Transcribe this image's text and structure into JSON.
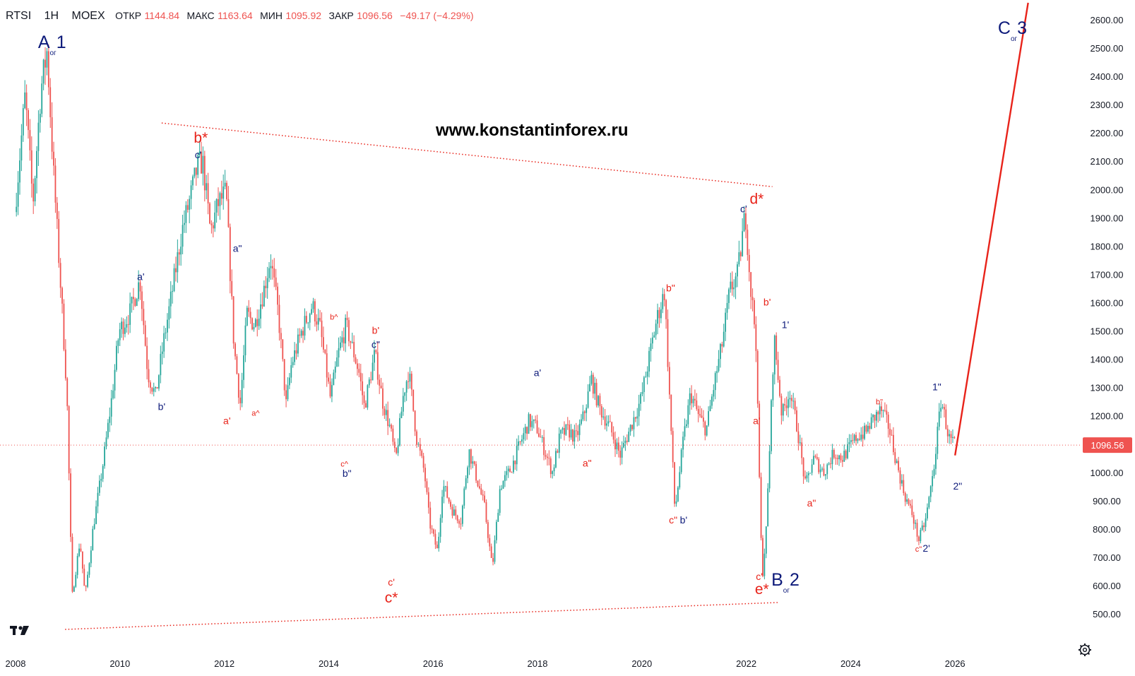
{
  "header": {
    "symbol": "RTSI",
    "interval": "1H",
    "exchange": "MOEX",
    "open_label": "ОТКР",
    "open_value": "1144.84",
    "high_label": "МАКС",
    "high_value": "1163.64",
    "low_label": "МИН",
    "low_value": "1095.92",
    "close_label": "ЗАКР",
    "close_value": "1096.56",
    "change": "−49.17 (−4.29%)"
  },
  "watermark": "www.konstantinforex.ru",
  "price_badge": "1096.56",
  "colors": {
    "up": "#26a69a",
    "down": "#ef5350",
    "wave_red": "#e8231a",
    "wave_navy": "#0d1a7a",
    "price_line": "#ef5350"
  },
  "icons": {
    "logo": "tradingview-logo-icon",
    "settings": "gear-icon"
  },
  "chart_data": {
    "type": "candlestick",
    "x_axis": {
      "min": 2008.0,
      "max": 2027.5,
      "ticks": [
        "2008",
        "2010",
        "2012",
        "2014",
        "2016",
        "2018",
        "2020",
        "2022",
        "2024",
        "2026"
      ]
    },
    "y_axis": {
      "min": 450,
      "max": 2650,
      "ticks": [
        "500.00",
        "600.00",
        "700.00",
        "800.00",
        "900.00",
        "1000.00",
        "1100.00",
        "1200.00",
        "1300.00",
        "1400.00",
        "1500.00",
        "1600.00",
        "1700.00",
        "1800.00",
        "1900.00",
        "2000.00",
        "2100.00",
        "2200.00",
        "2300.00",
        "2400.00",
        "2500.00",
        "2600.00"
      ]
    },
    "last_price": 1096.56,
    "price_path": [
      [
        2008.0,
        1920
      ],
      [
        2008.2,
        2330
      ],
      [
        2008.35,
        1950
      ],
      [
        2008.5,
        2350
      ],
      [
        2008.62,
        2490
      ],
      [
        2008.75,
        2040
      ],
      [
        2008.9,
        1600
      ],
      [
        2009.0,
        1280
      ],
      [
        2009.1,
        560
      ],
      [
        2009.25,
        760
      ],
      [
        2009.35,
        560
      ],
      [
        2009.5,
        800
      ],
      [
        2009.7,
        1040
      ],
      [
        2009.85,
        1250
      ],
      [
        2010.0,
        1500
      ],
      [
        2010.2,
        1560
      ],
      [
        2010.4,
        1680
      ],
      [
        2010.55,
        1350
      ],
      [
        2010.7,
        1270
      ],
      [
        2010.85,
        1460
      ],
      [
        2011.0,
        1620
      ],
      [
        2011.2,
        1850
      ],
      [
        2011.35,
        1960
      ],
      [
        2011.5,
        2080
      ],
      [
        2011.6,
        2100
      ],
      [
        2011.75,
        1850
      ],
      [
        2011.9,
        1950
      ],
      [
        2012.05,
        1990
      ],
      [
        2012.2,
        1450
      ],
      [
        2012.32,
        1240
      ],
      [
        2012.45,
        1560
      ],
      [
        2012.6,
        1520
      ],
      [
        2012.78,
        1650
      ],
      [
        2012.9,
        1760
      ],
      [
        2013.05,
        1560
      ],
      [
        2013.2,
        1240
      ],
      [
        2013.3,
        1380
      ],
      [
        2013.5,
        1500
      ],
      [
        2013.7,
        1590
      ],
      [
        2013.85,
        1510
      ],
      [
        2014.05,
        1260
      ],
      [
        2014.2,
        1420
      ],
      [
        2014.35,
        1520
      ],
      [
        2014.5,
        1420
      ],
      [
        2014.6,
        1350
      ],
      [
        2014.7,
        1230
      ],
      [
        2014.9,
        1420
      ],
      [
        2015.05,
        1250
      ],
      [
        2015.2,
        1150
      ],
      [
        2015.3,
        1040
      ],
      [
        2015.45,
        1280
      ],
      [
        2015.55,
        1360
      ],
      [
        2015.7,
        1120
      ],
      [
        2015.85,
        1000
      ],
      [
        2015.95,
        820
      ],
      [
        2016.1,
        720
      ],
      [
        2016.2,
        960
      ],
      [
        2016.4,
        860
      ],
      [
        2016.55,
        830
      ],
      [
        2016.7,
        1080
      ],
      [
        2016.85,
        980
      ],
      [
        2017.0,
        880
      ],
      [
        2017.15,
        660
      ],
      [
        2017.3,
        950
      ],
      [
        2017.5,
        1010
      ],
      [
        2017.7,
        1110
      ],
      [
        2017.85,
        1180
      ],
      [
        2018.0,
        1160
      ],
      [
        2018.15,
        1080
      ],
      [
        2018.3,
        1000
      ],
      [
        2018.45,
        1130
      ],
      [
        2018.6,
        1150
      ],
      [
        2018.75,
        1120
      ],
      [
        2018.9,
        1200
      ],
      [
        2019.05,
        1330
      ],
      [
        2019.2,
        1230
      ],
      [
        2019.4,
        1160
      ],
      [
        2019.6,
        1060
      ],
      [
        2019.8,
        1160
      ],
      [
        2020.0,
        1260
      ],
      [
        2020.15,
        1400
      ],
      [
        2020.3,
        1540
      ],
      [
        2020.45,
        1640
      ],
      [
        2020.55,
        1250
      ],
      [
        2020.65,
        860
      ],
      [
        2020.8,
        1100
      ],
      [
        2020.95,
        1280
      ],
      [
        2021.1,
        1200
      ],
      [
        2021.25,
        1150
      ],
      [
        2021.4,
        1310
      ],
      [
        2021.55,
        1450
      ],
      [
        2021.7,
        1640
      ],
      [
        2021.85,
        1700
      ],
      [
        2022.0,
        1920
      ],
      [
        2022.1,
        1650
      ],
      [
        2022.2,
        1480
      ],
      [
        2022.25,
        1100
      ],
      [
        2022.32,
        620
      ],
      [
        2022.4,
        800
      ],
      [
        2022.55,
        1480
      ],
      [
        2022.7,
        1200
      ],
      [
        2022.85,
        1290
      ],
      [
        2023.0,
        1150
      ],
      [
        2023.15,
        950
      ],
      [
        2023.3,
        1050
      ],
      [
        2023.5,
        1000
      ],
      [
        2023.7,
        1070
      ],
      [
        2023.85,
        1050
      ],
      [
        2024.0,
        1090
      ],
      [
        2024.15,
        1130
      ],
      [
        2024.3,
        1140
      ],
      [
        2024.45,
        1190
      ],
      [
        2024.6,
        1220
      ],
      [
        2024.75,
        1160
      ],
      [
        2024.9,
        1030
      ],
      [
        2025.05,
        920
      ],
      [
        2025.2,
        850
      ],
      [
        2025.32,
        760
      ],
      [
        2025.45,
        830
      ],
      [
        2025.6,
        1000
      ],
      [
        2025.75,
        1260
      ],
      [
        2025.9,
        1120
      ],
      [
        2026.0,
        1100
      ]
    ],
    "lines": [
      {
        "kind": "resistance-trendline",
        "from": [
          2010.8,
          2235
        ],
        "to": [
          2022.5,
          2010
        ],
        "style": "dotted",
        "color": "#e8231a"
      },
      {
        "kind": "support-trendline",
        "from": [
          2008.95,
          445
        ],
        "to": [
          2022.6,
          540
        ],
        "style": "dotted",
        "color": "#e8231a"
      },
      {
        "kind": "projection",
        "from": [
          2026.0,
          1060
        ],
        "to": [
          2027.4,
          2660
        ],
        "style": "solid",
        "color": "#e8231a"
      }
    ],
    "annotations": [
      {
        "text": "A",
        "sub": "ог",
        "num": "1",
        "x": 2008.7,
        "y": 2500,
        "color": "navy",
        "size": "large"
      },
      {
        "text": "b*",
        "x": 2011.55,
        "y": 2165,
        "color": "red",
        "size": "medium"
      },
      {
        "text": "c'",
        "x": 2011.5,
        "y": 2110,
        "color": "navy",
        "size": "small"
      },
      {
        "text": "a'",
        "x": 2010.4,
        "y": 1680,
        "color": "navy",
        "size": "small"
      },
      {
        "text": "b'",
        "x": 2010.8,
        "y": 1220,
        "color": "navy",
        "size": "small"
      },
      {
        "text": "a'",
        "x": 2012.05,
        "y": 1170,
        "color": "red",
        "size": "small"
      },
      {
        "text": "a\"",
        "x": 2012.25,
        "y": 1780,
        "color": "navy",
        "size": "small"
      },
      {
        "text": "a^",
        "x": 2012.6,
        "y": 1200,
        "color": "red",
        "size": "tiny"
      },
      {
        "text": "b^",
        "x": 2014.1,
        "y": 1540,
        "color": "red",
        "size": "tiny"
      },
      {
        "text": "b'",
        "x": 2014.9,
        "y": 1490,
        "color": "red",
        "size": "small"
      },
      {
        "text": "c\"",
        "x": 2014.9,
        "y": 1440,
        "color": "navy",
        "size": "small"
      },
      {
        "text": "c^",
        "x": 2014.3,
        "y": 1020,
        "color": "red",
        "size": "tiny"
      },
      {
        "text": "b\"",
        "x": 2014.35,
        "y": 985,
        "color": "navy",
        "size": "small"
      },
      {
        "text": "c'",
        "x": 2015.2,
        "y": 600,
        "color": "red",
        "size": "small"
      },
      {
        "text": "c*",
        "x": 2015.2,
        "y": 540,
        "color": "red",
        "size": "medium"
      },
      {
        "text": "a'",
        "x": 2018.0,
        "y": 1340,
        "color": "navy",
        "size": "small"
      },
      {
        "text": "a\"",
        "x": 2018.95,
        "y": 1020,
        "color": "red",
        "size": "small"
      },
      {
        "text": "b\"",
        "x": 2020.55,
        "y": 1640,
        "color": "red",
        "size": "small"
      },
      {
        "text": "c\"",
        "x": 2020.6,
        "y": 820,
        "color": "red",
        "size": "small"
      },
      {
        "text": "b'",
        "x": 2020.8,
        "y": 820,
        "color": "navy",
        "size": "small"
      },
      {
        "text": "c'",
        "x": 2021.95,
        "y": 1920,
        "color": "navy",
        "size": "small"
      },
      {
        "text": "d*",
        "x": 2022.2,
        "y": 1950,
        "color": "red",
        "size": "medium"
      },
      {
        "text": "b'",
        "x": 2022.4,
        "y": 1590,
        "color": "red",
        "size": "small"
      },
      {
        "text": "1'",
        "x": 2022.75,
        "y": 1510,
        "color": "navy",
        "size": "small"
      },
      {
        "text": "a'",
        "x": 2022.2,
        "y": 1170,
        "color": "red",
        "size": "small"
      },
      {
        "text": "c'",
        "x": 2022.25,
        "y": 620,
        "color": "red",
        "size": "small"
      },
      {
        "text": "e*",
        "x": 2022.3,
        "y": 570,
        "color": "red",
        "size": "medium"
      },
      {
        "text": "B",
        "sub": "ог",
        "num": "2",
        "x": 2022.75,
        "y": 600,
        "color": "navy",
        "size": "large"
      },
      {
        "text": "a\"",
        "x": 2023.25,
        "y": 880,
        "color": "red",
        "size": "small"
      },
      {
        "text": "b\"",
        "x": 2024.55,
        "y": 1240,
        "color": "red",
        "size": "tiny"
      },
      {
        "text": "1\"",
        "x": 2025.65,
        "y": 1290,
        "color": "navy",
        "size": "small"
      },
      {
        "text": "2\"",
        "x": 2026.05,
        "y": 940,
        "color": "navy",
        "size": "small"
      },
      {
        "text": "c\"",
        "x": 2025.3,
        "y": 720,
        "color": "red",
        "size": "tiny"
      },
      {
        "text": "2'",
        "x": 2025.45,
        "y": 720,
        "color": "navy",
        "size": "small"
      },
      {
        "text": "C",
        "sub": "ог",
        "num": "3",
        "x": 2027.1,
        "y": 2550,
        "color": "navy",
        "size": "large"
      }
    ]
  }
}
